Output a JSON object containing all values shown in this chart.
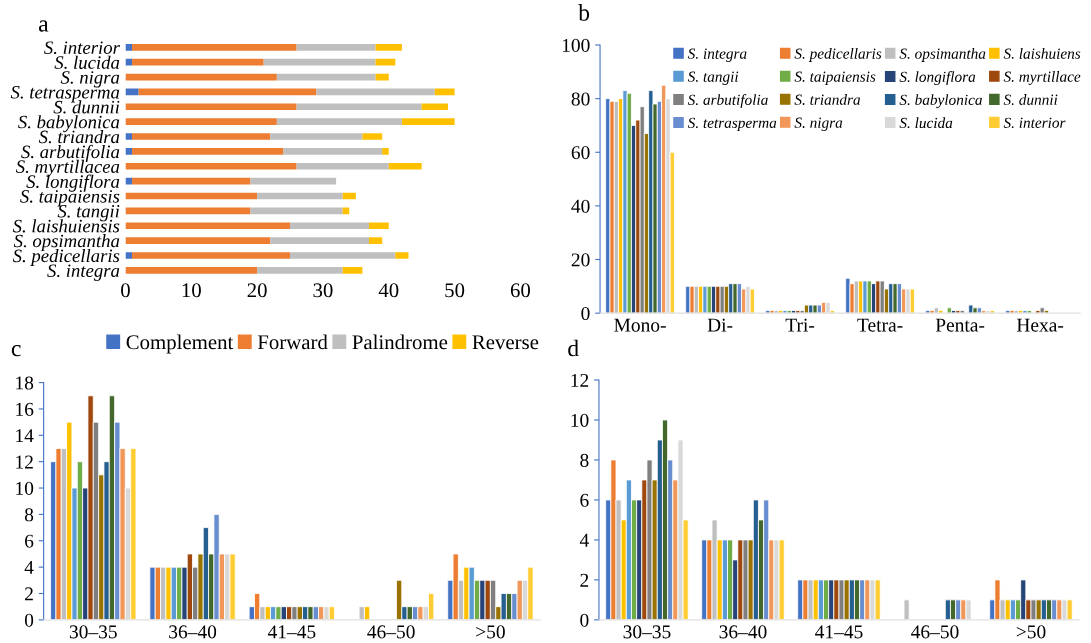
{
  "chart_data": [
    {
      "type": "bar",
      "title": "a",
      "orientation": "horizontal",
      "stacked": true,
      "legend": "bottom",
      "grid": false,
      "categories": [
        "S. interior",
        "S. lucida",
        "S. nigra",
        "S. tetrasperma",
        "S. dunnii",
        "S. babylonica",
        "S. triandra",
        "S. arbutifolia",
        "S. myrtillacea",
        "S. longiflora",
        "S. taipaiensis",
        "S. tangii",
        "S. laishuiensis",
        "S. opsimantha",
        "S. pedicellaris",
        "S. integra"
      ],
      "xlim": [
        0,
        60
      ],
      "xticks": [
        0,
        10,
        20,
        30,
        40,
        50,
        60
      ],
      "series": [
        {
          "name": "Complement",
          "color": "#4472c4",
          "values": [
            1,
            1,
            0,
            2,
            0,
            0,
            1,
            1,
            0,
            1,
            0,
            0,
            0,
            0,
            1,
            0
          ]
        },
        {
          "name": "Forward",
          "color": "#ed7d31",
          "values": [
            25,
            20,
            23,
            27,
            26,
            23,
            21,
            23,
            26,
            18,
            20,
            19,
            25,
            22,
            24,
            20
          ]
        },
        {
          "name": "Palindrome",
          "color": "#bfbfbf",
          "values": [
            12,
            17,
            15,
            18,
            19,
            19,
            14,
            15,
            14,
            13,
            13,
            14,
            12,
            15,
            16,
            13
          ]
        },
        {
          "name": "Reverse",
          "color": "#ffc000",
          "values": [
            4,
            3,
            2,
            3,
            4,
            8,
            3,
            1,
            5,
            0,
            2,
            1,
            3,
            2,
            2,
            3
          ]
        }
      ]
    },
    {
      "type": "bar",
      "title": "b",
      "legend": "top right",
      "grid": false,
      "categories": [
        "Mono-",
        "Di-",
        "Tri-",
        "Tetra-",
        "Penta-",
        "Hexa-"
      ],
      "ylim": [
        0,
        100
      ],
      "yticks": [
        0,
        20,
        40,
        60,
        80,
        100
      ],
      "series": [
        {
          "name": "S. integra",
          "color": "#4472c4",
          "values": [
            80,
            10,
            1,
            13,
            1,
            1
          ]
        },
        {
          "name": "S. pedicellaris",
          "color": "#ed7d31",
          "values": [
            79,
            10,
            1,
            11,
            1,
            1
          ]
        },
        {
          "name": "S. opsimantha",
          "color": "#bfbfbf",
          "values": [
            79,
            10,
            1,
            12,
            2,
            1
          ]
        },
        {
          "name": "S. laishuiens",
          "color": "#ffc000",
          "values": [
            80,
            10,
            1,
            12,
            1,
            1
          ]
        },
        {
          "name": "S. tangii",
          "color": "#5b9bd5",
          "values": [
            83,
            10,
            1,
            12,
            null,
            1
          ]
        },
        {
          "name": "S. taipaiensis",
          "color": "#70ad47",
          "values": [
            82,
            10,
            1,
            12,
            2,
            1
          ]
        },
        {
          "name": "S. longiflora",
          "color": "#264478",
          "values": [
            70,
            10,
            1,
            11,
            1,
            null
          ]
        },
        {
          "name": "S. myrtillace",
          "color": "#9e480e",
          "values": [
            72,
            10,
            1,
            12,
            1,
            1
          ]
        },
        {
          "name": "S. arbutifolia",
          "color": "#7f7f7f",
          "values": [
            77,
            10,
            1,
            12,
            1,
            2
          ]
        },
        {
          "name": "S. triandra",
          "color": "#997300",
          "values": [
            67,
            10,
            3,
            9,
            null,
            1
          ]
        },
        {
          "name": "S. babylonica",
          "color": "#255e91",
          "values": [
            83,
            11,
            3,
            11,
            3,
            null
          ]
        },
        {
          "name": "S. dunnii",
          "color": "#43682b",
          "values": [
            78,
            11,
            3,
            11,
            2,
            null
          ]
        },
        {
          "name": "S. tetrasperma",
          "color": "#698ed0",
          "values": [
            79,
            11,
            3,
            11,
            2,
            null
          ]
        },
        {
          "name": "S. nigra",
          "color": "#f1975a",
          "values": [
            85,
            9,
            4,
            9,
            1,
            null
          ]
        },
        {
          "name": "S. lucida",
          "color": "#d9d9d9",
          "values": [
            80,
            10,
            4,
            9,
            1,
            null
          ]
        },
        {
          "name": "S. interior",
          "color": "#ffcd33",
          "values": [
            60,
            9,
            1,
            9,
            1,
            null
          ]
        }
      ]
    },
    {
      "type": "bar",
      "title": "c",
      "grid": false,
      "categories": [
        "30–35",
        "36–40",
        "41–45",
        "46–50",
        ">50"
      ],
      "ylim": [
        0,
        18
      ],
      "yticks": [
        0,
        2,
        4,
        6,
        8,
        10,
        12,
        14,
        16,
        18
      ],
      "series": [
        {
          "color": "#4472c4",
          "values": [
            12,
            4,
            1,
            null,
            3
          ]
        },
        {
          "color": "#ed7d31",
          "values": [
            13,
            4,
            2,
            null,
            5
          ]
        },
        {
          "color": "#bfbfbf",
          "values": [
            13,
            4,
            1,
            1,
            3
          ]
        },
        {
          "color": "#ffc000",
          "values": [
            15,
            4,
            1,
            1,
            4
          ]
        },
        {
          "color": "#5b9bd5",
          "values": [
            10,
            4,
            1,
            null,
            4
          ]
        },
        {
          "color": "#70ad47",
          "values": [
            12,
            4,
            1,
            null,
            3
          ]
        },
        {
          "color": "#264478",
          "values": [
            10,
            4,
            1,
            null,
            3
          ]
        },
        {
          "color": "#9e480e",
          "values": [
            17,
            5,
            1,
            null,
            3
          ]
        },
        {
          "color": "#7f7f7f",
          "values": [
            15,
            4,
            1,
            null,
            3
          ]
        },
        {
          "color": "#997300",
          "values": [
            11,
            5,
            1,
            3,
            1
          ]
        },
        {
          "color": "#255e91",
          "values": [
            12,
            7,
            1,
            1,
            2
          ]
        },
        {
          "color": "#43682b",
          "values": [
            17,
            5,
            1,
            1,
            2
          ]
        },
        {
          "color": "#698ed0",
          "values": [
            15,
            8,
            1,
            1,
            2
          ]
        },
        {
          "color": "#f1975a",
          "values": [
            13,
            5,
            1,
            1,
            3
          ]
        },
        {
          "color": "#d9d9d9",
          "values": [
            10,
            5,
            1,
            1,
            3
          ]
        },
        {
          "color": "#ffcd33",
          "values": [
            13,
            5,
            1,
            2,
            4
          ]
        }
      ]
    },
    {
      "type": "bar",
      "title": "d",
      "grid": false,
      "categories": [
        "30–35",
        "36–40",
        "41–45",
        "46–50",
        ">50"
      ],
      "ylim": [
        0,
        12
      ],
      "yticks": [
        0,
        2,
        4,
        6,
        8,
        10,
        12
      ],
      "series": [
        {
          "color": "#4472c4",
          "values": [
            6,
            4,
            2,
            null,
            1
          ]
        },
        {
          "color": "#ed7d31",
          "values": [
            8,
            4,
            2,
            null,
            2
          ]
        },
        {
          "color": "#bfbfbf",
          "values": [
            6,
            5,
            2,
            1,
            1
          ]
        },
        {
          "color": "#ffc000",
          "values": [
            5,
            4,
            2,
            null,
            1
          ]
        },
        {
          "color": "#5b9bd5",
          "values": [
            7,
            4,
            2,
            null,
            1
          ]
        },
        {
          "color": "#70ad47",
          "values": [
            6,
            4,
            2,
            null,
            1
          ]
        },
        {
          "color": "#264478",
          "values": [
            6,
            3,
            2,
            null,
            2
          ]
        },
        {
          "color": "#9e480e",
          "values": [
            7,
            4,
            2,
            null,
            1
          ]
        },
        {
          "color": "#7f7f7f",
          "values": [
            8,
            4,
            2,
            null,
            1
          ]
        },
        {
          "color": "#997300",
          "values": [
            7,
            4,
            2,
            null,
            1
          ]
        },
        {
          "color": "#255e91",
          "values": [
            9,
            6,
            2,
            1,
            1
          ]
        },
        {
          "color": "#43682b",
          "values": [
            10,
            5,
            2,
            1,
            1
          ]
        },
        {
          "color": "#698ed0",
          "values": [
            8,
            6,
            2,
            1,
            1
          ]
        },
        {
          "color": "#f1975a",
          "values": [
            7,
            4,
            2,
            1,
            1
          ]
        },
        {
          "color": "#d9d9d9",
          "values": [
            9,
            4,
            2,
            1,
            1
          ]
        },
        {
          "color": "#ffcd33",
          "values": [
            5,
            4,
            2,
            null,
            1
          ]
        }
      ]
    }
  ]
}
